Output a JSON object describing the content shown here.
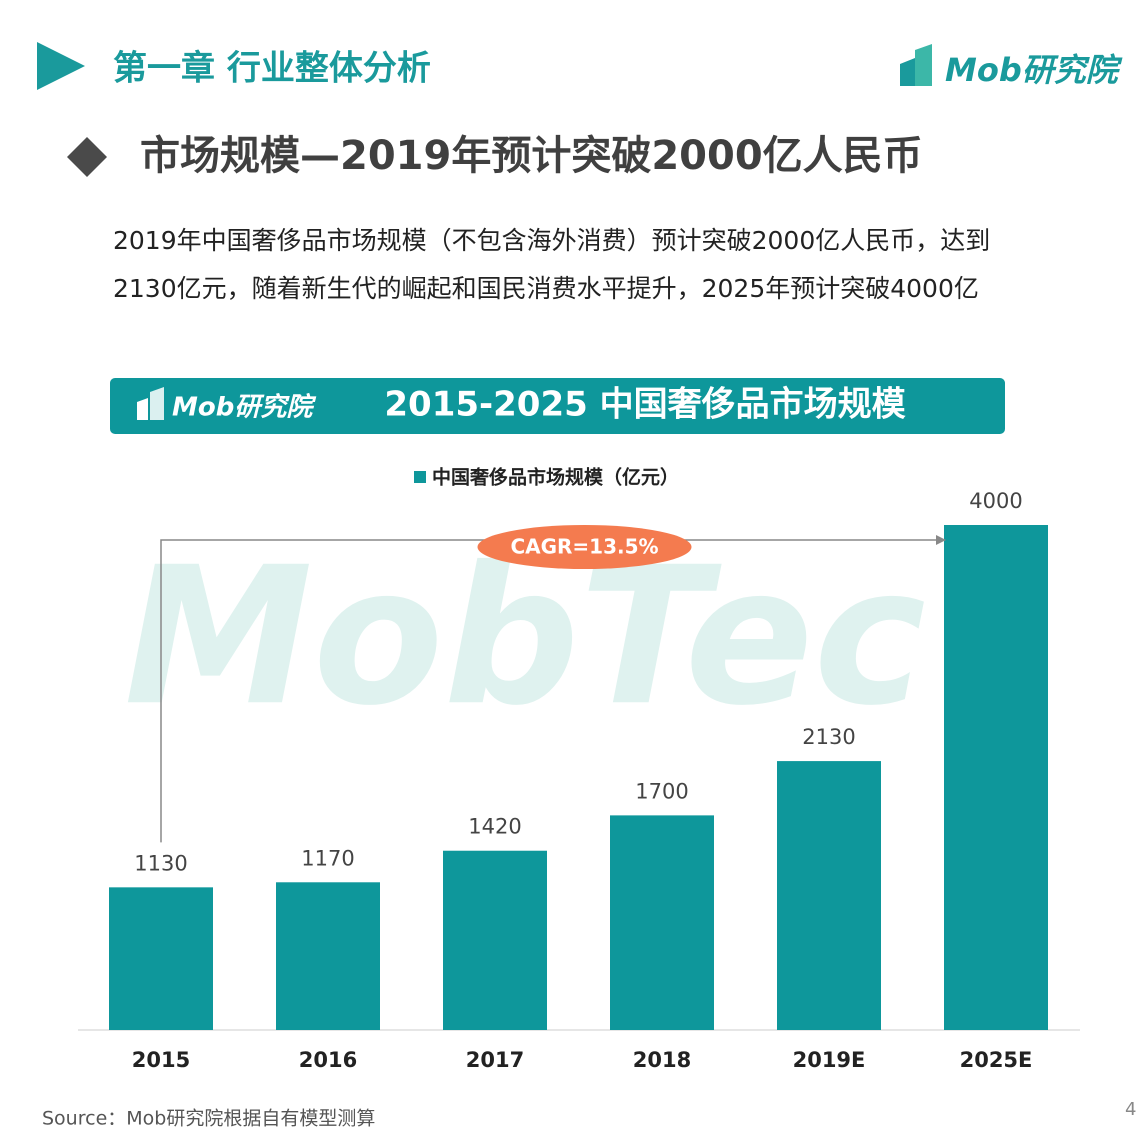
{
  "header": {
    "chapter": "第一章  行业整体分析",
    "logo": "Mob研究院"
  },
  "headline": "市场规模—2019年预计突破2000亿人民币",
  "body": [
    "2019年中国奢侈品市场规模（不包含海外消费）预计突破2000亿人民币，达到",
    "2130亿元，随着新生代的崛起和国民消费水平提升，2025年预计突破4000亿"
  ],
  "chart_data": {
    "type": "bar",
    "title": "2015-2025 中国奢侈品市场规模",
    "banner_logo": "Mob研究院",
    "watermark": "MobTec",
    "categories": [
      "2015",
      "2016",
      "2017",
      "2018",
      "2019E",
      "2025E"
    ],
    "series": [
      {
        "name": "中国奢侈品市场规模（亿元）",
        "color": "#0e979b",
        "values": [
          1130,
          1170,
          1420,
          1700,
          2130,
          4000
        ]
      }
    ],
    "ylim": [
      0,
      4000
    ],
    "legend": "top",
    "annotation": "CAGR=13.5%",
    "annotation_color": "#f47b4f",
    "source": "Source：Mob研究院根据自有模型测算"
  },
  "page_number": "4"
}
